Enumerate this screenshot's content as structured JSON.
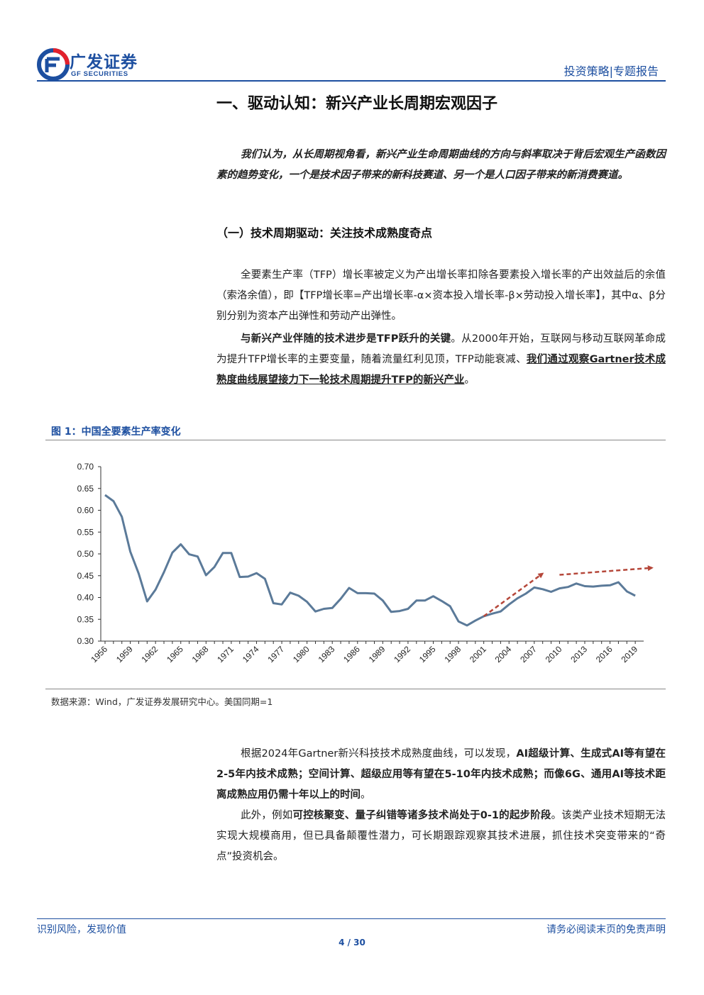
{
  "header": {
    "logo_cn": "广发证券",
    "logo_en": "GF SECURITIES",
    "category": "投资策略|专题报告"
  },
  "section_title": "一、驱动认知：新兴产业长周期宏观因子",
  "intro": "我们认为，从长周期视角看，新兴产业生命周期曲线的方向与斜率取决于背后宏观生产函数因素的趋势变化，一个是技术因子带来的新科技赛道、另一个是人口因子带来的新消费赛道。",
  "subsection_title": "（一）技术周期驱动：关注技术成熟度奇点",
  "para1": "全要素生产率（TFP）增长率被定义为产出增长率扣除各要素投入增长率的产出效益后的余值（索洛余值），即【TFP增长率=产出增长率-α×资本投入增长率-β×劳动投入增长率】，其中α、β分别分别为资本产出弹性和劳动产出弹性。",
  "para2": {
    "bold_lead": "与新兴产业伴随的技术进步是TFP跃升的关键",
    "text": "。从2000年开始，互联网与移动互联网革命成为提升TFP增长率的主要变量，随着流量红利见顶，TFP动能衰减、",
    "bold_underline": "我们通过观察Gartner技术成熟度曲线展望接力下一轮技术周期提升TFP的新兴产业",
    "tail": "。"
  },
  "figure": {
    "caption": "图 1：中国全要素生产率变化",
    "source": "数据来源：Wind，广发证券发展研究中心。美国同期=1"
  },
  "chart_data": {
    "type": "line",
    "title": "",
    "xlabel": "",
    "ylabel": "",
    "ylim": [
      0.3,
      0.7
    ],
    "yticks": [
      "0.70",
      "0.65",
      "0.60",
      "0.55",
      "0.50",
      "0.45",
      "0.40",
      "0.35",
      "0.30"
    ],
    "xticks": [
      "1956",
      "1959",
      "1962",
      "1965",
      "1968",
      "1971",
      "1974",
      "1977",
      "1980",
      "1983",
      "1986",
      "1989",
      "1992",
      "1995",
      "1998",
      "2001",
      "2004",
      "2007",
      "2010",
      "2013",
      "2016",
      "2019"
    ],
    "grid": false,
    "line_color": "#5b7a99",
    "arrow_color": "#b5473a",
    "series": [
      {
        "x": [
          1956,
          1957,
          1958,
          1959,
          1960,
          1961,
          1962,
          1963,
          1964,
          1965,
          1966,
          1967,
          1968,
          1969,
          1970,
          1971,
          1972,
          1973,
          1974,
          1975,
          1976,
          1977,
          1978,
          1979,
          1980,
          1981,
          1982,
          1983,
          1984,
          1985,
          1986,
          1987,
          1988,
          1989,
          1990,
          1991,
          1992,
          1993,
          1994,
          1995,
          1996,
          1997,
          1998,
          1999,
          2000,
          2001,
          2002,
          2003,
          2004,
          2005,
          2006,
          2007,
          2008,
          2009,
          2010,
          2011,
          2012,
          2013,
          2014,
          2015,
          2016,
          2017,
          2018,
          2019
        ],
        "values": [
          0.635,
          0.621,
          0.585,
          0.505,
          0.455,
          0.391,
          0.418,
          0.458,
          0.503,
          0.522,
          0.499,
          0.494,
          0.451,
          0.47,
          0.502,
          0.502,
          0.447,
          0.448,
          0.456,
          0.443,
          0.387,
          0.384,
          0.411,
          0.404,
          0.39,
          0.368,
          0.374,
          0.376,
          0.397,
          0.422,
          0.41,
          0.41,
          0.409,
          0.393,
          0.367,
          0.369,
          0.374,
          0.393,
          0.393,
          0.403,
          0.392,
          0.38,
          0.345,
          0.336,
          0.347,
          0.357,
          0.363,
          0.368,
          0.384,
          0.398,
          0.409,
          0.423,
          0.419,
          0.413,
          0.421,
          0.424,
          0.432,
          0.426,
          0.425,
          0.427,
          0.428,
          0.435,
          0.414,
          0.404
        ]
      }
    ],
    "annotations": [
      {
        "type": "dashed-arrow",
        "from": [
          2001,
          0.357
        ],
        "to": [
          2008,
          0.455
        ]
      },
      {
        "type": "dashed-arrow",
        "from": [
          2010,
          0.452
        ],
        "to": [
          2021,
          0.468
        ]
      }
    ]
  },
  "para3": {
    "lead": "根据2024年Gartner新兴科技技术成熟度曲线，可以发现，",
    "bold": "AI超级计算、生成式AI等有望在2-5年内技术成熟；空间计算、超级应用等有望在5-10年内技术成熟；而像6G、通用AI等技术距离成熟应用仍需十年以上的时间",
    "tail": "。"
  },
  "para4": {
    "lead": "此外，例如",
    "bold": "可控核聚变、量子纠错等诸多技术尚处于0-1的起步阶段",
    "tail": "。该类产业技术短期无法实现大规模商用，但已具备颠覆性潜力，可长期跟踪观察其技术进展，抓住技术突变带来的“奇点”投资机会。"
  },
  "footer": {
    "left": "识别风险，发现价值",
    "right": "请务必阅读末页的免责声明",
    "page": "4 / 30"
  }
}
